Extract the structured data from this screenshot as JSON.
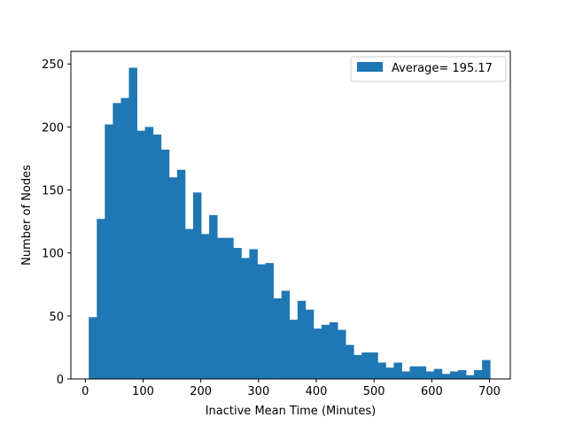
{
  "chart_data": {
    "type": "bar",
    "subtype": "histogram",
    "title": "",
    "xlabel": "Inactive Mean Time (Minutes)",
    "ylabel": "Number of Nodes",
    "xlim": [
      -25,
      736
    ],
    "ylim": [
      0,
      260
    ],
    "xticks": [
      0,
      100,
      200,
      300,
      400,
      500,
      600,
      700
    ],
    "yticks": [
      0,
      50,
      100,
      150,
      200,
      250
    ],
    "bin_start": 6,
    "bin_width": 13.9,
    "values": [
      49,
      127,
      202,
      219,
      223,
      247,
      197,
      200,
      194,
      182,
      160,
      166,
      119,
      148,
      115,
      130,
      112,
      112,
      104,
      96,
      103,
      91,
      92,
      64,
      70,
      47,
      62,
      55,
      40,
      43,
      45,
      39,
      27,
      19,
      21,
      21,
      13,
      9,
      13,
      6,
      10,
      10,
      6,
      8,
      4,
      6,
      7,
      3,
      7,
      15
    ],
    "series": [
      {
        "name": "Average= 195.17",
        "color": "#1f77b4"
      }
    ],
    "legend": {
      "position": "top-right",
      "label": "Average= 195.17"
    },
    "grid": false
  }
}
